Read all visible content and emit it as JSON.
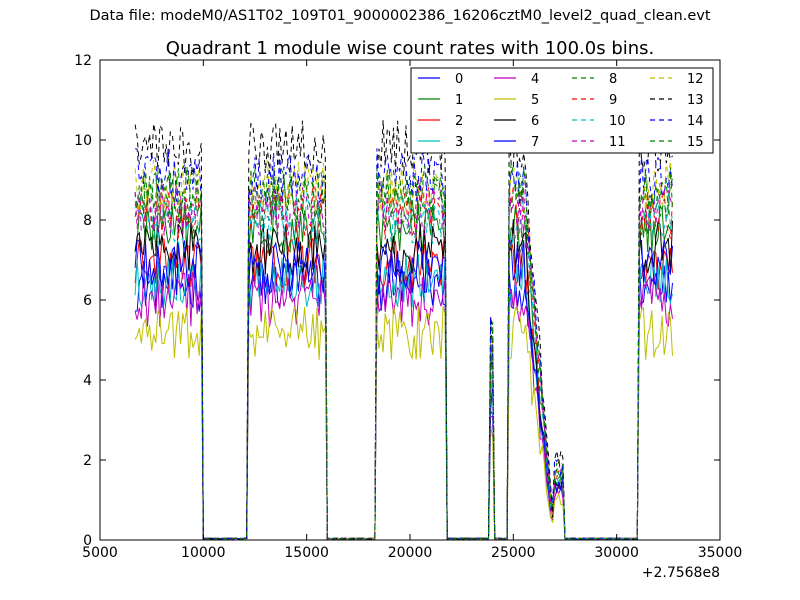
{
  "suptitle": "Data file: modeM0/AS1T02_109T01_9000002386_16206cztM0_level2_quad_clean.evt",
  "chart_data": {
    "type": "line",
    "title": "Quadrant 1 module wise count rates with 100.0s bins.",
    "xlabel": "",
    "ylabel": "",
    "xlim": [
      5000,
      35000
    ],
    "ylim": [
      0,
      12
    ],
    "x_offset_label": "+2.7568e8",
    "xticks": [
      5000,
      10000,
      15000,
      20000,
      25000,
      30000,
      35000
    ],
    "xtick_labels": [
      "5000",
      "10000",
      "15000",
      "20000",
      "25000",
      "30000",
      "35000"
    ],
    "yticks": [
      0,
      2,
      4,
      6,
      8,
      10,
      12
    ],
    "ytick_labels": [
      "0",
      "2",
      "4",
      "6",
      "8",
      "10",
      "12"
    ],
    "grid": false,
    "legend_position": "top-right",
    "segments": [
      {
        "start": 6700,
        "end": 9900,
        "active": true
      },
      {
        "start": 10000,
        "end": 12100,
        "active": false
      },
      {
        "start": 12200,
        "end": 15900,
        "active": true
      },
      {
        "start": 16000,
        "end": 18300,
        "active": false
      },
      {
        "start": 18400,
        "end": 21700,
        "active": true
      },
      {
        "start": 21800,
        "end": 23800,
        "active": false
      },
      {
        "start": 23900,
        "end": 24000,
        "active": true,
        "peak_factor": 0.55
      },
      {
        "start": 24100,
        "end": 24700,
        "active": false
      },
      {
        "start": 24800,
        "end": 26900,
        "active": true,
        "decay": true
      },
      {
        "start": 27000,
        "end": 27400,
        "active": true,
        "peak_factor": 0.2
      },
      {
        "start": 27500,
        "end": 31000,
        "active": false
      },
      {
        "start": 31100,
        "end": 32700,
        "active": true
      }
    ],
    "series": [
      {
        "name": "0",
        "color": "#0000ff",
        "style": "solid",
        "level": 6.4
      },
      {
        "name": "1",
        "color": "#007f00",
        "style": "solid",
        "level": 7.8
      },
      {
        "name": "2",
        "color": "#ff0000",
        "style": "solid",
        "level": 6.9
      },
      {
        "name": "3",
        "color": "#00bfbf",
        "style": "solid",
        "level": 6.5
      },
      {
        "name": "4",
        "color": "#bf00bf",
        "style": "solid",
        "level": 6.0
      },
      {
        "name": "5",
        "color": "#bfbf00",
        "style": "solid",
        "level": 5.2
      },
      {
        "name": "6",
        "color": "#000000",
        "style": "solid",
        "level": 7.3
      },
      {
        "name": "7",
        "color": "#0000ff",
        "style": "solid",
        "level": 6.8
      },
      {
        "name": "8",
        "color": "#007f00",
        "style": "dashed",
        "level": 8.6
      },
      {
        "name": "9",
        "color": "#ff0000",
        "style": "dashed",
        "level": 8.2
      },
      {
        "name": "10",
        "color": "#00bfbf",
        "style": "dashed",
        "level": 8.0
      },
      {
        "name": "11",
        "color": "#bf00bf",
        "style": "dashed",
        "level": 8.3
      },
      {
        "name": "12",
        "color": "#bfbf00",
        "style": "dashed",
        "level": 8.8
      },
      {
        "name": "13",
        "color": "#000000",
        "style": "dashed",
        "level": 9.8
      },
      {
        "name": "14",
        "color": "#0000ff",
        "style": "dashed",
        "level": 9.1
      },
      {
        "name": "15",
        "color": "#007f00",
        "style": "dashed",
        "level": 8.7
      }
    ]
  }
}
